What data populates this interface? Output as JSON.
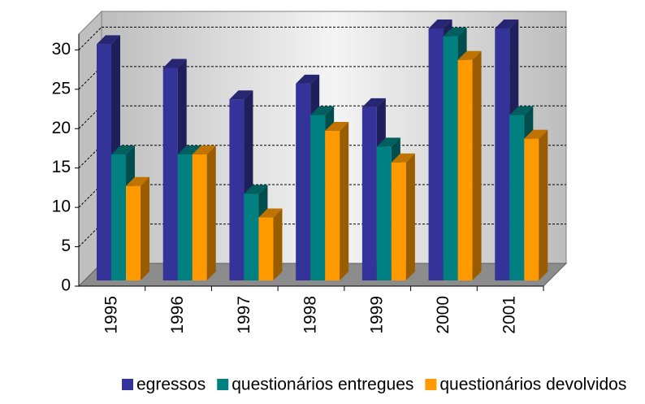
{
  "chart_data": {
    "type": "bar3d",
    "categories": [
      "1995",
      "1996",
      "1997",
      "1998",
      "1999",
      "2000",
      "2001"
    ],
    "series": [
      {
        "name": "egressos",
        "color": "#333399",
        "values": [
          30,
          27,
          23,
          25,
          22,
          32,
          32
        ]
      },
      {
        "name": "questionários entregues",
        "color": "#008080",
        "values": [
          16,
          16,
          11,
          21,
          17,
          31,
          21
        ]
      },
      {
        "name": "questionários devolvidos",
        "color": "#ff9900",
        "values": [
          12,
          16,
          8,
          19,
          15,
          28,
          18
        ]
      }
    ],
    "ylim": [
      0,
      32
    ],
    "yticks": [
      0,
      5,
      10,
      15,
      20,
      25,
      30
    ],
    "grid": true,
    "legend": "bottom"
  }
}
